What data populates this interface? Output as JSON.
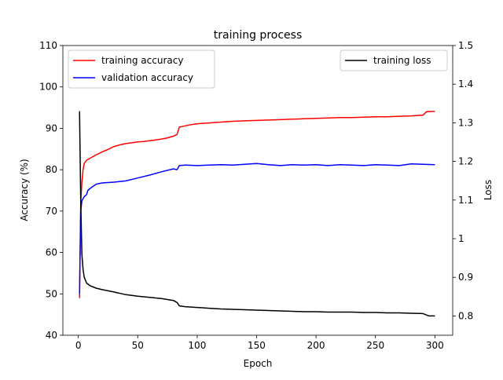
{
  "chart_data": {
    "type": "line",
    "title": "training process",
    "xlabel": "Epoch",
    "ylabel_left": "Accuracy (%)",
    "ylabel_right": "Loss",
    "xlim": [
      -13,
      315
    ],
    "ylim_left": [
      40,
      110
    ],
    "ylim_right": [
      0.75,
      1.5
    ],
    "x_ticks": [
      0,
      50,
      100,
      150,
      200,
      250,
      300
    ],
    "y_left_ticks": [
      40,
      50,
      60,
      70,
      80,
      90,
      100,
      110
    ],
    "y_right_ticks": [
      0.8,
      0.9,
      1.0,
      1.1,
      1.2,
      1.3,
      1.4,
      1.5
    ],
    "grid": false,
    "legend_left": {
      "placement": "upper-left",
      "entries": [
        "training accuracy",
        "validation accuracy"
      ]
    },
    "legend_right": {
      "placement": "upper-right",
      "entries": [
        "training loss"
      ]
    },
    "series": [
      {
        "name": "training accuracy",
        "axis": "left",
        "color": "#ff0000",
        "points": [
          [
            1,
            49
          ],
          [
            2,
            72
          ],
          [
            3,
            77
          ],
          [
            4,
            80
          ],
          [
            5,
            81.5
          ],
          [
            7,
            82.3
          ],
          [
            10,
            82.8
          ],
          [
            15,
            83.6
          ],
          [
            20,
            84.3
          ],
          [
            25,
            84.9
          ],
          [
            30,
            85.6
          ],
          [
            35,
            86
          ],
          [
            40,
            86.3
          ],
          [
            45,
            86.5
          ],
          [
            50,
            86.7
          ],
          [
            55,
            86.8
          ],
          [
            60,
            87
          ],
          [
            65,
            87.2
          ],
          [
            70,
            87.4
          ],
          [
            75,
            87.7
          ],
          [
            80,
            88.1
          ],
          [
            83,
            88.5
          ],
          [
            85,
            90.3
          ],
          [
            90,
            90.6
          ],
          [
            95,
            90.9
          ],
          [
            100,
            91.1
          ],
          [
            110,
            91.3
          ],
          [
            120,
            91.5
          ],
          [
            130,
            91.7
          ],
          [
            140,
            91.8
          ],
          [
            150,
            91.9
          ],
          [
            160,
            92
          ],
          [
            170,
            92.1
          ],
          [
            180,
            92.2
          ],
          [
            190,
            92.3
          ],
          [
            200,
            92.4
          ],
          [
            210,
            92.5
          ],
          [
            220,
            92.6
          ],
          [
            230,
            92.6
          ],
          [
            240,
            92.7
          ],
          [
            250,
            92.8
          ],
          [
            260,
            92.8
          ],
          [
            270,
            92.9
          ],
          [
            280,
            93
          ],
          [
            290,
            93.2
          ],
          [
            293,
            94
          ],
          [
            300,
            94.1
          ]
        ]
      },
      {
        "name": "validation accuracy",
        "axis": "left",
        "color": "#0000ff",
        "points": [
          [
            1,
            50
          ],
          [
            2,
            70
          ],
          [
            3,
            72.5
          ],
          [
            4,
            73
          ],
          [
            5,
            73.5
          ],
          [
            7,
            74
          ],
          [
            8,
            75
          ],
          [
            10,
            75.5
          ],
          [
            15,
            76.5
          ],
          [
            20,
            76.8
          ],
          [
            30,
            77
          ],
          [
            40,
            77.3
          ],
          [
            50,
            78
          ],
          [
            60,
            78.7
          ],
          [
            70,
            79.5
          ],
          [
            80,
            80.2
          ],
          [
            83,
            80
          ],
          [
            85,
            81
          ],
          [
            90,
            81.1
          ],
          [
            100,
            81
          ],
          [
            110,
            81.1
          ],
          [
            120,
            81.2
          ],
          [
            130,
            81.1
          ],
          [
            140,
            81.3
          ],
          [
            150,
            81.5
          ],
          [
            160,
            81.2
          ],
          [
            170,
            81
          ],
          [
            180,
            81.2
          ],
          [
            190,
            81.1
          ],
          [
            200,
            81.2
          ],
          [
            210,
            81
          ],
          [
            220,
            81.2
          ],
          [
            230,
            81.1
          ],
          [
            240,
            81
          ],
          [
            250,
            81.2
          ],
          [
            260,
            81.1
          ],
          [
            270,
            81
          ],
          [
            280,
            81.4
          ],
          [
            290,
            81.3
          ],
          [
            300,
            81.2
          ]
        ]
      },
      {
        "name": "training loss",
        "axis": "right",
        "color": "#000000",
        "points": [
          [
            1,
            1.33
          ],
          [
            2,
            1.1
          ],
          [
            3,
            0.96
          ],
          [
            4,
            0.92
          ],
          [
            5,
            0.9
          ],
          [
            7,
            0.885
          ],
          [
            10,
            0.878
          ],
          [
            15,
            0.872
          ],
          [
            20,
            0.868
          ],
          [
            30,
            0.862
          ],
          [
            40,
            0.855
          ],
          [
            50,
            0.851
          ],
          [
            60,
            0.848
          ],
          [
            70,
            0.845
          ],
          [
            80,
            0.84
          ],
          [
            83,
            0.835
          ],
          [
            85,
            0.826
          ],
          [
            90,
            0.824
          ],
          [
            100,
            0.822
          ],
          [
            110,
            0.82
          ],
          [
            120,
            0.818
          ],
          [
            130,
            0.817
          ],
          [
            140,
            0.816
          ],
          [
            150,
            0.815
          ],
          [
            160,
            0.814
          ],
          [
            170,
            0.813
          ],
          [
            180,
            0.812
          ],
          [
            190,
            0.811
          ],
          [
            200,
            0.811
          ],
          [
            210,
            0.81
          ],
          [
            220,
            0.81
          ],
          [
            230,
            0.81
          ],
          [
            240,
            0.809
          ],
          [
            250,
            0.809
          ],
          [
            260,
            0.808
          ],
          [
            270,
            0.808
          ],
          [
            280,
            0.807
          ],
          [
            290,
            0.806
          ],
          [
            295,
            0.8
          ],
          [
            300,
            0.8
          ]
        ]
      }
    ]
  }
}
